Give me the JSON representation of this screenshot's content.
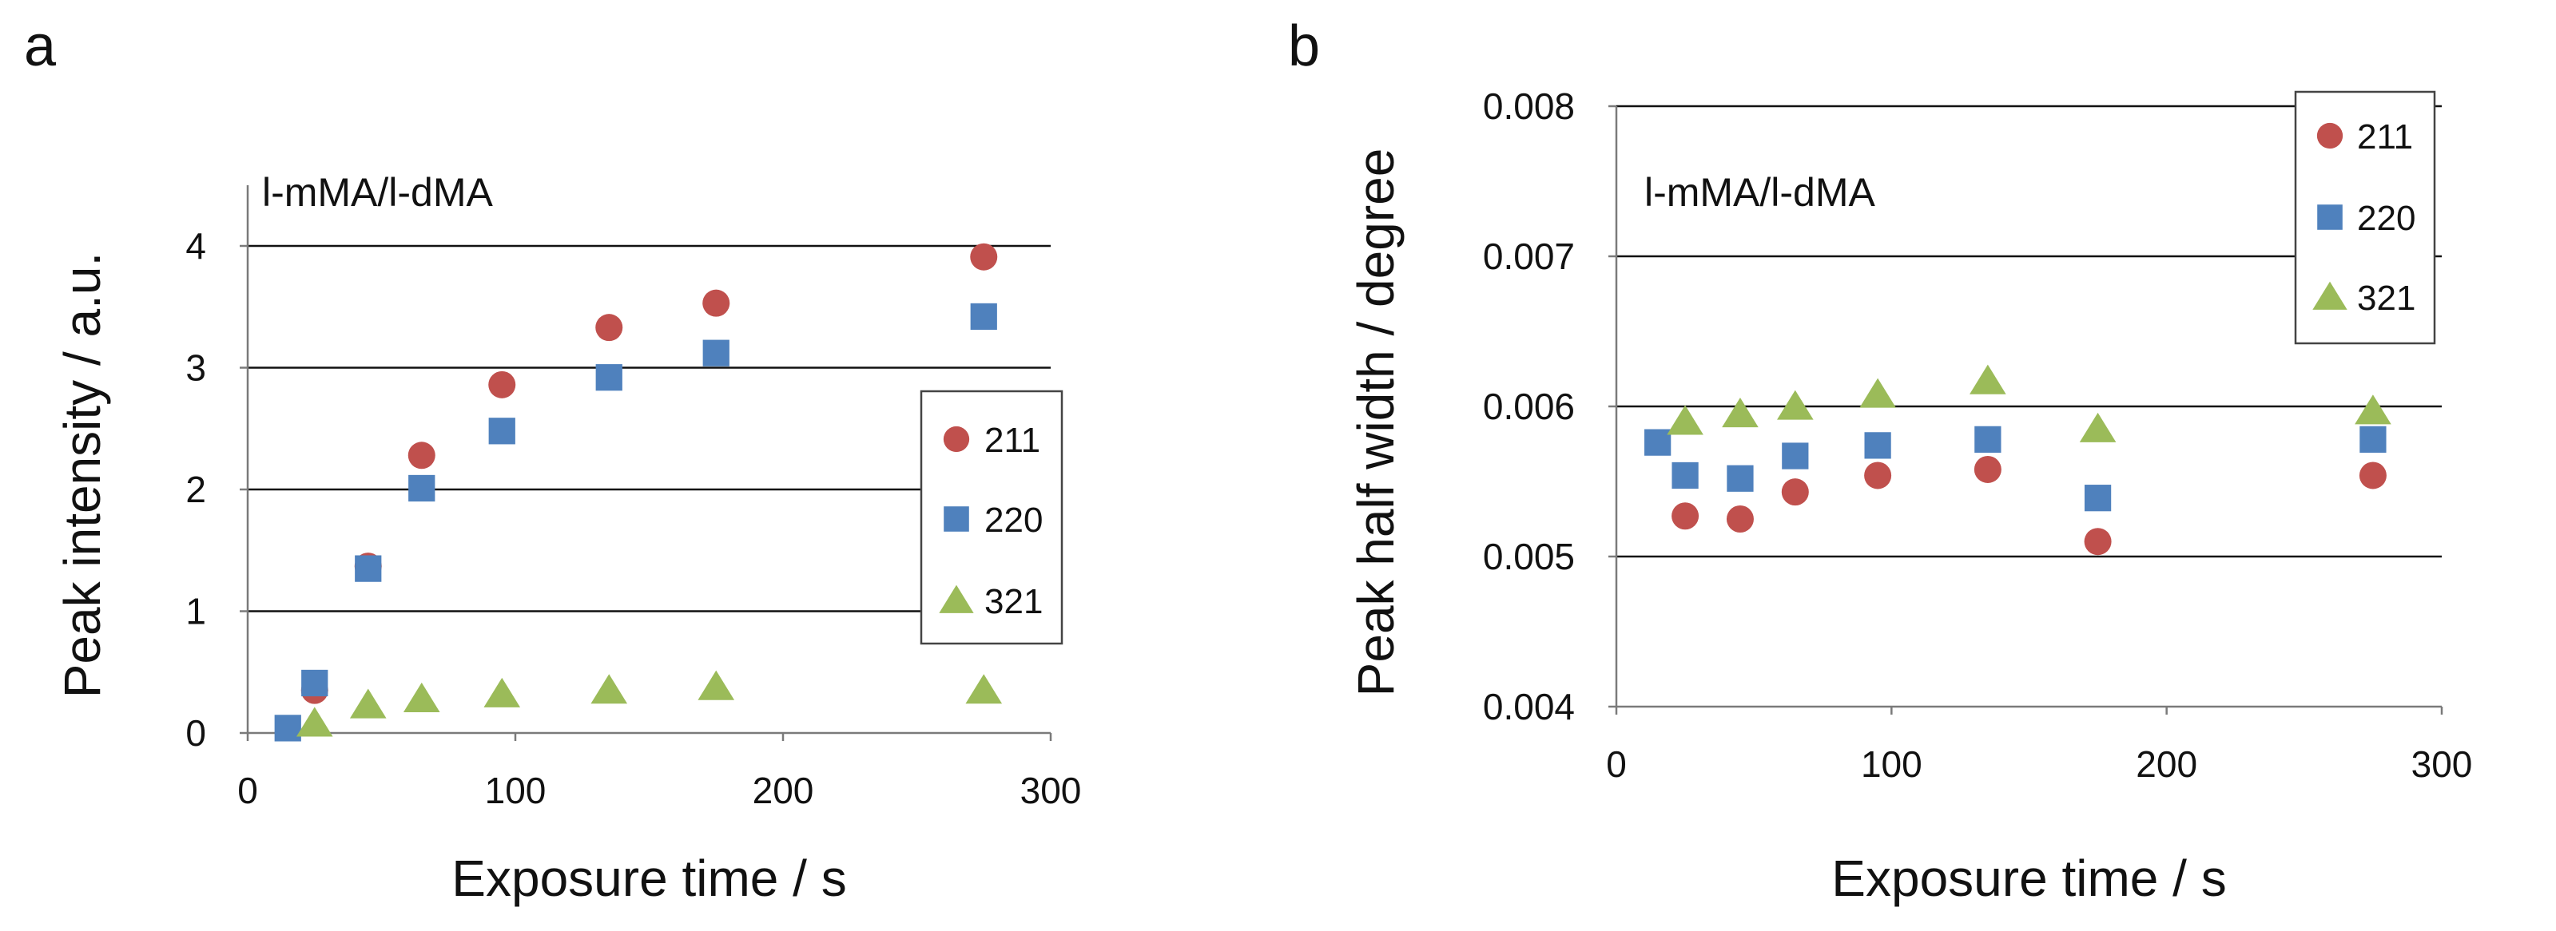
{
  "chart_data": [
    {
      "type": "scatter",
      "panel": "a",
      "annotation": "l-mMA/l-dMA",
      "title": "",
      "xlabel": "Exposure time / s",
      "ylabel": "Peak intensity / a.u.",
      "xlim": [
        0,
        300
      ],
      "ylim": [
        0,
        4.4
      ],
      "xticks": [
        0,
        100,
        200,
        300
      ],
      "yticks": [
        0,
        1,
        2,
        3,
        4
      ],
      "xtick_labels": [
        "0",
        "100",
        "200",
        "300"
      ],
      "ytick_labels": [
        "0",
        "1",
        "2",
        "3",
        "4"
      ],
      "grid": "horizontal",
      "legend": "right",
      "series": [
        {
          "name": "211",
          "marker": "circle",
          "color": "#c0504d",
          "x": [
            25,
            45,
            65,
            95,
            135,
            175,
            275
          ],
          "y": [
            0.35,
            1.37,
            2.28,
            2.86,
            3.33,
            3.53,
            3.91
          ]
        },
        {
          "name": "220",
          "marker": "square",
          "color": "#4f81bd",
          "x": [
            15,
            25,
            45,
            65,
            95,
            135,
            175,
            275
          ],
          "y": [
            0.04,
            0.41,
            1.35,
            2.01,
            2.48,
            2.92,
            3.12,
            3.42
          ]
        },
        {
          "name": "321",
          "marker": "triangle",
          "color": "#9bbb59",
          "x": [
            25,
            45,
            65,
            95,
            135,
            175,
            275
          ],
          "y": [
            0.08,
            0.23,
            0.28,
            0.32,
            0.35,
            0.38,
            0.35
          ]
        }
      ]
    },
    {
      "type": "scatter",
      "panel": "b",
      "annotation": "l-mMA/l-dMA",
      "title": "",
      "xlabel": "Exposure time / s",
      "ylabel": "Peak half width / degree",
      "xlim": [
        0,
        300
      ],
      "ylim": [
        0.004,
        0.008
      ],
      "xticks": [
        0,
        100,
        200,
        300
      ],
      "yticks": [
        0.004,
        0.005,
        0.006,
        0.007,
        0.008
      ],
      "xtick_labels": [
        "0",
        "100",
        "200",
        "300"
      ],
      "ytick_labels": [
        "0.004",
        "0.005",
        "0.006",
        "0.007",
        "0.008"
      ],
      "grid": "horizontal",
      "legend": "top-right",
      "series": [
        {
          "name": "211",
          "marker": "circle",
          "color": "#c0504d",
          "x": [
            25,
            45,
            65,
            95,
            135,
            175,
            275
          ],
          "y": [
            0.00527,
            0.00525,
            0.00543,
            0.00554,
            0.00558,
            0.0051,
            0.00554
          ]
        },
        {
          "name": "220",
          "marker": "square",
          "color": "#4f81bd",
          "x": [
            15,
            25,
            45,
            65,
            95,
            135,
            175,
            275
          ],
          "y": [
            0.00576,
            0.00554,
            0.00552,
            0.00567,
            0.00574,
            0.00578,
            0.00539,
            0.00578
          ]
        },
        {
          "name": "321",
          "marker": "triangle",
          "color": "#9bbb59",
          "x": [
            25,
            45,
            65,
            95,
            135,
            175,
            275
          ],
          "y": [
            0.0059,
            0.00595,
            0.006,
            0.00608,
            0.00617,
            0.00585,
            0.00597
          ]
        }
      ]
    }
  ]
}
